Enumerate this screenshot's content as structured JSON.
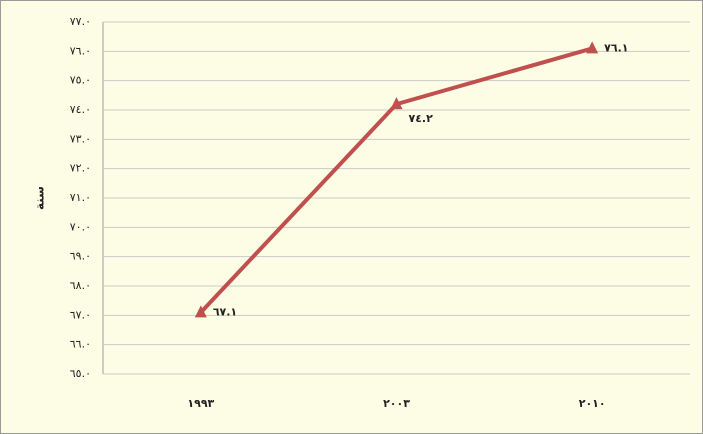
{
  "chart_data": {
    "type": "line",
    "y_label": "سنة",
    "categories": [
      "١٩٩٣",
      "٢٠٠٣",
      "٢٠١٠"
    ],
    "values": [
      67.1,
      74.2,
      76.1
    ],
    "value_labels": [
      "٦٧.١",
      "٧٤.٢",
      "٧٦.١"
    ],
    "color": "#c0504d",
    "ylim": [
      65,
      77
    ],
    "yticks": [
      {
        "value": 65,
        "label": "٦٥.٠"
      },
      {
        "value": 66,
        "label": "٦٦.٠"
      },
      {
        "value": 67,
        "label": "٦٧.٠"
      },
      {
        "value": 68,
        "label": "٦٨.٠"
      },
      {
        "value": 69,
        "label": "٦٩.٠"
      },
      {
        "value": 70,
        "label": "٧٠.٠"
      },
      {
        "value": 71,
        "label": "٧١.٠"
      },
      {
        "value": 72,
        "label": "٧٢.٠"
      },
      {
        "value": 73,
        "label": "٧٣.٠"
      },
      {
        "value": 74,
        "label": "٧٤.٠"
      },
      {
        "value": 75,
        "label": "٧٥.٠"
      },
      {
        "value": 76,
        "label": "٧٦.٠"
      },
      {
        "value": 77,
        "label": "٧٧.٠"
      }
    ],
    "grid": true
  }
}
